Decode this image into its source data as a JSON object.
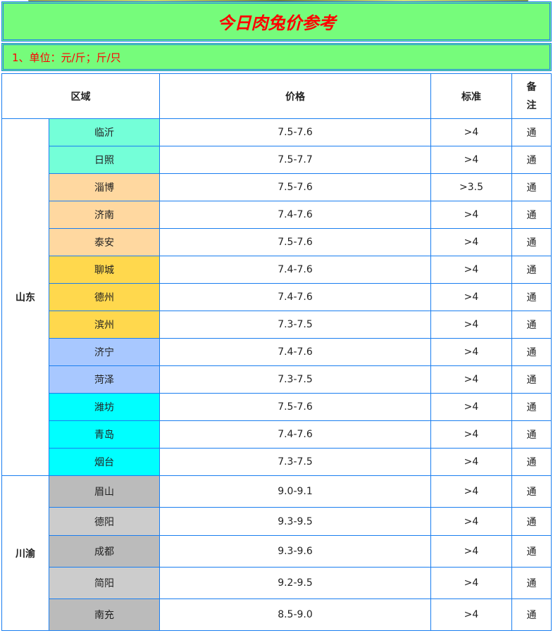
{
  "title": "今日肉兔价参考",
  "note": "1、单位：元/斤；斤/只",
  "headers": {
    "region": "区域",
    "price": "价格",
    "standard": "标准",
    "remark": "备注"
  },
  "colors": {
    "header_bg": "#76FC7B",
    "title": "#FF0000",
    "border": "#1A7EF0"
  },
  "groups": [
    {
      "name": "山东",
      "rows": [
        {
          "city": "临沂",
          "price": "7.5-7.6",
          "std": ">4",
          "remark": "通",
          "color": "#74FFD8"
        },
        {
          "city": "日照",
          "price": "7.5-7.7",
          "std": ">4",
          "remark": "通",
          "color": "#74FFD8"
        },
        {
          "city": "淄博",
          "price": "7.5-7.6",
          "std": ">3.5",
          "remark": "通",
          "color": "#FFD8A0"
        },
        {
          "city": "济南",
          "price": "7.4-7.6",
          "std": ">4",
          "remark": "通",
          "color": "#FFD8A0"
        },
        {
          "city": "泰安",
          "price": "7.5-7.6",
          "std": ">4",
          "remark": "通",
          "color": "#FFD8A0"
        },
        {
          "city": "聊城",
          "price": "7.4-7.6",
          "std": ">4",
          "remark": "通",
          "color": "#FFD84D"
        },
        {
          "city": "德州",
          "price": "7.4-7.6",
          "std": ">4",
          "remark": "通",
          "color": "#FFD84D"
        },
        {
          "city": "滨州",
          "price": "7.3-7.5",
          "std": ">4",
          "remark": "通",
          "color": "#FFD84D"
        },
        {
          "city": "济宁",
          "price": "7.4-7.6",
          "std": ">4",
          "remark": "通",
          "color": "#A8C8FF"
        },
        {
          "city": "菏泽",
          "price": "7.3-7.5",
          "std": ">4",
          "remark": "通",
          "color": "#A8C8FF"
        },
        {
          "city": "潍坊",
          "price": "7.5-7.6",
          "std": ">4",
          "remark": "通",
          "color": "#00FFFF"
        },
        {
          "city": "青岛",
          "price": "7.4-7.6",
          "std": ">4",
          "remark": "通",
          "color": "#00FFFF"
        },
        {
          "city": "烟台",
          "price": "7.3-7.5",
          "std": ">4",
          "remark": "通",
          "color": "#00FFFF"
        }
      ]
    },
    {
      "name": "川渝",
      "rows": [
        {
          "city": "眉山",
          "price": "9.0-9.1",
          "std": ">4",
          "remark": "通",
          "color": "#BBBBBB"
        },
        {
          "city": "德阳",
          "price": "9.3-9.5",
          "std": ">4",
          "remark": "通",
          "color": "#CCCCCC"
        },
        {
          "city": "成都",
          "price": "9.3-9.6",
          "std": ">4",
          "remark": "通",
          "color": "#BBBBBB"
        },
        {
          "city": "简阳",
          "price": "9.2-9.5",
          "std": ">4",
          "remark": "通",
          "color": "#CCCCCC"
        },
        {
          "city": "南充",
          "price": "8.5-9.0",
          "std": ">4",
          "remark": "通",
          "color": "#BBBBBB"
        }
      ]
    }
  ]
}
